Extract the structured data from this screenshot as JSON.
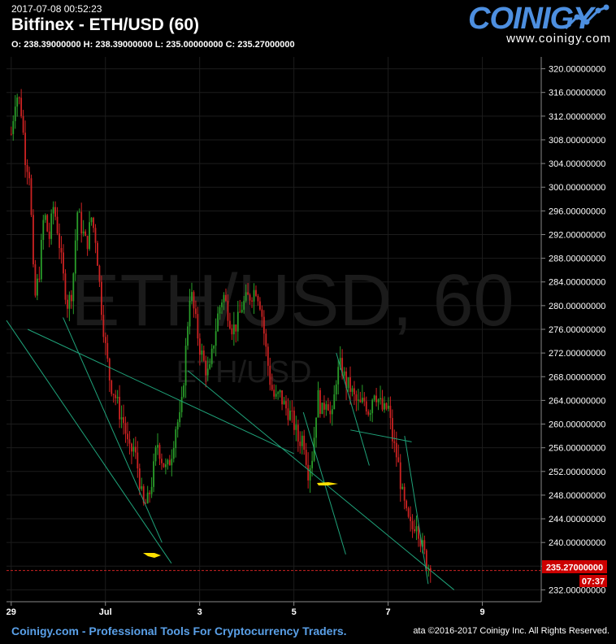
{
  "header": {
    "timestamp": "2017-07-08 00:52:23",
    "title": "Bitfinex - ETH/USD (60)",
    "ohlc": "O: 238.39000000 H: 238.39000000 L: 235.00000000 C: 235.27000000"
  },
  "logo": {
    "word": "COINIGY",
    "url": "www.coinigy.com"
  },
  "watermark": {
    "main": "ETH/USD, 60",
    "sub": "ETH/USD"
  },
  "footer": {
    "left": "Coinigy.com - Professional Tools For Cryptocurrency Traders.",
    "right": "ata ©2016-2017 Coinigy Inc. All Rights Reserved."
  },
  "price_badge": {
    "label": "235.27000000",
    "countdown": "07:37"
  },
  "colors": {
    "up": "#2a9d2a",
    "down": "#cc2222",
    "trend": "#1fa37a",
    "accent": "#ffe000",
    "badge": "#cc0000",
    "axis": "#888888"
  },
  "chart_data": {
    "type": "candlestick",
    "y_ticks": [
      "232.00000000",
      "236.00000000",
      "240.00000000",
      "244.00000000",
      "248.00000000",
      "252.00000000",
      "256.00000000",
      "260.00000000",
      "264.00000000",
      "268.00000000",
      "272.00000000",
      "276.00000000",
      "280.00000000",
      "284.00000000",
      "288.00000000",
      "292.00000000",
      "296.00000000",
      "300.00000000",
      "304.00000000",
      "308.00000000",
      "312.00000000",
      "316.00000000",
      "320.00000000"
    ],
    "y_tick_values": [
      232,
      236,
      240,
      244,
      248,
      252,
      256,
      260,
      264,
      268,
      272,
      276,
      280,
      284,
      288,
      292,
      296,
      300,
      304,
      308,
      312,
      316,
      320
    ],
    "x_ticks": [
      "29",
      "Jul",
      "3",
      "5",
      "7",
      "9"
    ],
    "x_tick_days": [
      0,
      2,
      4,
      6,
      8,
      10
    ],
    "ylim": [
      230,
      322
    ],
    "xlim": [
      -0.1,
      11.25
    ],
    "last_price": 235.27,
    "path": [
      [
        0,
        309
      ],
      [
        0.1,
        316
      ],
      [
        0.2,
        314
      ],
      [
        0.3,
        305
      ],
      [
        0.4,
        302
      ],
      [
        0.45,
        288
      ],
      [
        0.5,
        281
      ],
      [
        0.6,
        286
      ],
      [
        0.7,
        296
      ],
      [
        0.8,
        291
      ],
      [
        0.9,
        297
      ],
      [
        1.0,
        292
      ],
      [
        1.1,
        285
      ],
      [
        1.2,
        280
      ],
      [
        1.3,
        283
      ],
      [
        1.4,
        296
      ],
      [
        1.5,
        293
      ],
      [
        1.6,
        290
      ],
      [
        1.7,
        295
      ],
      [
        1.8,
        291
      ],
      [
        1.9,
        281
      ],
      [
        2.0,
        273
      ],
      [
        2.1,
        267
      ],
      [
        2.2,
        265
      ],
      [
        2.3,
        262
      ],
      [
        2.4,
        260
      ],
      [
        2.5,
        255
      ],
      [
        2.6,
        256
      ],
      [
        2.7,
        252
      ],
      [
        2.8,
        246
      ],
      [
        2.9,
        247
      ],
      [
        3.0,
        251
      ],
      [
        3.1,
        257
      ],
      [
        3.2,
        254
      ],
      [
        3.3,
        252
      ],
      [
        3.4,
        255
      ],
      [
        3.5,
        260
      ],
      [
        3.6,
        261
      ],
      [
        3.7,
        272
      ],
      [
        3.8,
        283
      ],
      [
        3.9,
        278
      ],
      [
        4.0,
        273
      ],
      [
        4.1,
        270
      ],
      [
        4.2,
        268
      ],
      [
        4.3,
        274
      ],
      [
        4.4,
        279
      ],
      [
        4.5,
        282
      ],
      [
        4.6,
        279
      ],
      [
        4.7,
        276
      ],
      [
        4.8,
        277
      ],
      [
        4.9,
        280
      ],
      [
        5.0,
        281
      ],
      [
        5.1,
        282
      ],
      [
        5.2,
        283
      ],
      [
        5.3,
        280
      ],
      [
        5.4,
        273
      ],
      [
        5.5,
        267
      ],
      [
        5.6,
        264
      ],
      [
        5.7,
        265
      ],
      [
        5.8,
        263
      ],
      [
        5.9,
        262
      ],
      [
        6.0,
        260
      ],
      [
        6.1,
        257
      ],
      [
        6.2,
        258
      ],
      [
        6.3,
        252
      ],
      [
        6.4,
        255
      ],
      [
        6.5,
        265
      ],
      [
        6.6,
        262
      ],
      [
        6.7,
        265
      ],
      [
        6.8,
        260
      ],
      [
        6.9,
        268
      ],
      [
        7.0,
        270
      ],
      [
        7.1,
        267
      ],
      [
        7.2,
        266
      ],
      [
        7.3,
        264
      ],
      [
        7.4,
        263
      ],
      [
        7.5,
        264
      ],
      [
        7.6,
        262
      ],
      [
        7.7,
        266
      ],
      [
        7.8,
        264
      ],
      [
        7.9,
        262
      ],
      [
        8.0,
        263
      ],
      [
        8.1,
        257
      ],
      [
        8.2,
        254
      ],
      [
        8.3,
        248
      ],
      [
        8.4,
        244
      ],
      [
        8.5,
        242
      ],
      [
        8.6,
        244
      ],
      [
        8.7,
        240
      ],
      [
        8.8,
        237
      ],
      [
        8.9,
        235.27
      ]
    ],
    "trend_lines": [
      {
        "from": [
          -0.1,
          277.5
        ],
        "to": [
          3.4,
          236.5
        ]
      },
      {
        "from": [
          0.35,
          276
        ],
        "to": [
          6.0,
          255
        ]
      },
      {
        "from": [
          1.1,
          278
        ],
        "to": [
          3.2,
          240
        ]
      },
      {
        "from": [
          3.75,
          269
        ],
        "to": [
          9.4,
          232
        ]
      },
      {
        "from": [
          6.2,
          262
        ],
        "to": [
          7.1,
          238
        ]
      },
      {
        "from": [
          6.9,
          272
        ],
        "to": [
          7.6,
          253
        ]
      },
      {
        "from": [
          7.2,
          259
        ],
        "to": [
          8.5,
          257
        ]
      },
      {
        "from": [
          8.35,
          258
        ],
        "to": [
          8.85,
          233
        ]
      }
    ]
  }
}
